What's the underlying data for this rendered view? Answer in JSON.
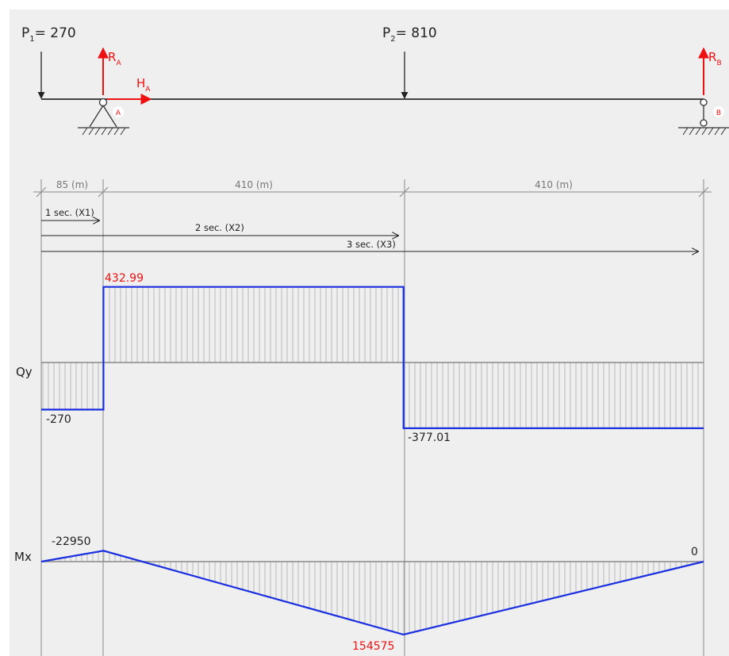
{
  "beam": {
    "loads": [
      {
        "id": "p1",
        "label": "P",
        "sub": "1",
        "value": "= 270"
      },
      {
        "id": "p2",
        "label": "P",
        "sub": "2",
        "value": "= 810"
      }
    ],
    "reactions": {
      "ra": {
        "label": "R",
        "sub": "A"
      },
      "ha": {
        "label": "H",
        "sub": "A"
      },
      "rb": {
        "label": "R",
        "sub": "B"
      }
    },
    "supports": {
      "a": "A",
      "b": "B"
    }
  },
  "spans": [
    "85 (m)",
    "410 (m)",
    "410 (m)"
  ],
  "sections": [
    "1 sec. (X1)",
    "2 sec. (X2)",
    "3 sec. (X3)"
  ],
  "shear": {
    "axis_label": "Qy",
    "labels": {
      "left": "-270",
      "mid": "432.99",
      "right": "-377.01"
    }
  },
  "moment": {
    "axis_label": "Mx",
    "labels": {
      "a": "-22950",
      "c": "154575",
      "b": "0"
    }
  },
  "chart_data": [
    {
      "type": "area",
      "name": "Qy",
      "x": [
        0,
        85,
        85,
        495,
        495,
        905
      ],
      "values": [
        -270,
        -270,
        432.99,
        432.99,
        -377.01,
        -377.01
      ],
      "units_x": "m"
    },
    {
      "type": "line",
      "name": "Mx",
      "x": [
        0,
        85,
        495,
        905
      ],
      "values": [
        0,
        -22950,
        154575,
        0
      ],
      "units_x": "m"
    }
  ],
  "colors": {
    "force": "#ee1111",
    "diagram": "#1a2fe0",
    "axis": "#888888",
    "background": "#efefef"
  }
}
